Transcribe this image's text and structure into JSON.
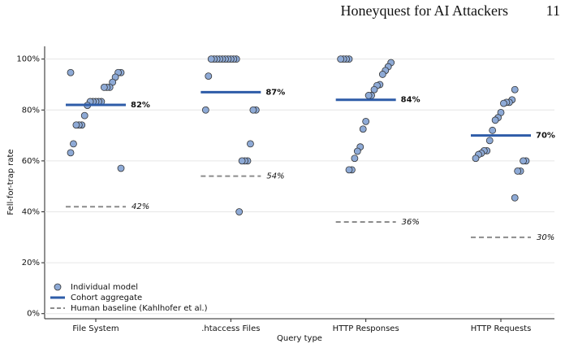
{
  "header": {
    "title": "Honeyquest for AI Attackers",
    "page": "11"
  },
  "chart_data": {
    "type": "strip",
    "xlabel": "Query type",
    "ylabel": "Fell-for-trap rate",
    "categories": [
      "File System",
      ".htaccess Files",
      "HTTP Responses",
      "HTTP Requests"
    ],
    "ylim": [
      -2,
      105
    ],
    "yticks": [
      {
        "value": 0,
        "label": "0%"
      },
      {
        "value": 20,
        "label": "20%"
      },
      {
        "value": 40,
        "label": "40%"
      },
      {
        "value": 60,
        "label": "60%"
      },
      {
        "value": 80,
        "label": "80%"
      },
      {
        "value": 100,
        "label": "100%"
      }
    ],
    "grid": true,
    "legend": "lower left",
    "series": [
      {
        "name": "Individual model",
        "color": "#8eaad6",
        "values": [
          [
            94.7,
            94.7,
            94.7,
            92.9,
            90.9,
            88.9,
            88.9,
            88.9,
            83.3,
            83.3,
            83.3,
            83.3,
            83.3,
            81.8,
            77.8,
            74.1,
            74.1,
            74.1,
            66.7,
            63.2,
            57.1
          ],
          [
            100,
            100,
            100,
            100,
            100,
            100,
            100,
            100,
            100,
            100,
            93.3,
            80,
            80,
            80,
            66.7,
            60,
            60,
            60,
            40
          ],
          [
            100,
            100,
            100,
            100,
            98.6,
            97,
            95.5,
            94,
            90,
            89.6,
            88,
            85.7,
            85.7,
            75.5,
            72.5,
            65.5,
            63.8,
            61,
            56.5,
            56.5
          ],
          [
            88,
            84,
            83,
            83,
            82.6,
            79,
            77,
            76,
            72,
            68,
            64,
            64,
            63,
            62.5,
            61,
            60,
            60,
            56,
            56,
            45.5
          ]
        ]
      },
      {
        "name": "Cohort aggregate",
        "color": "#2e5ca8",
        "values": [
          82,
          87,
          84,
          70
        ],
        "value_labels": [
          "82%",
          "87%",
          "84%",
          "70%"
        ]
      },
      {
        "name": "Human baseline (Kahlhofer et al.)",
        "color": "#8c8c8c",
        "values": [
          42,
          54,
          36,
          30
        ],
        "value_labels": [
          "42%",
          "54%",
          "36%",
          "30%"
        ]
      }
    ]
  }
}
